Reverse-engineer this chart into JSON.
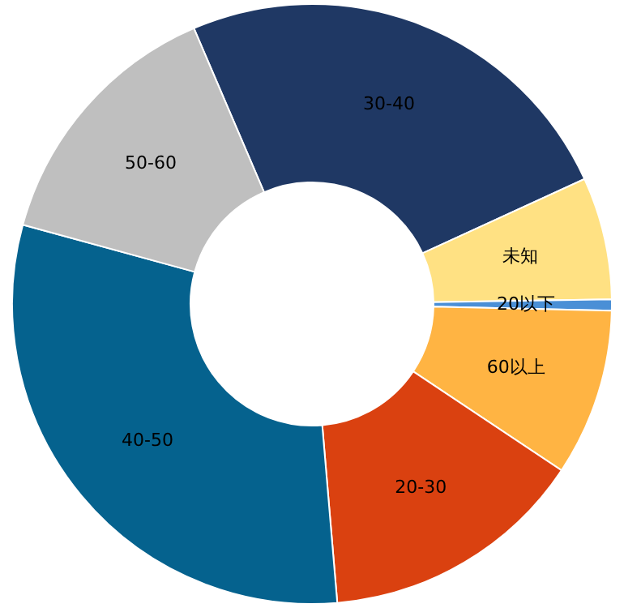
{
  "chart_data": {
    "type": "donut",
    "categories": [
      "30-40",
      "未知",
      "20以下",
      "60以上",
      "20-30",
      "40-50",
      "50-60"
    ],
    "values": [
      24.6,
      6.6,
      0.6,
      9.0,
      14.3,
      30.6,
      14.3
    ],
    "colors": [
      "#1f3864",
      "#ffe183",
      "#4a8fd6",
      "#ffb443",
      "#da4110",
      "#05628e",
      "#bfbfbf"
    ]
  }
}
